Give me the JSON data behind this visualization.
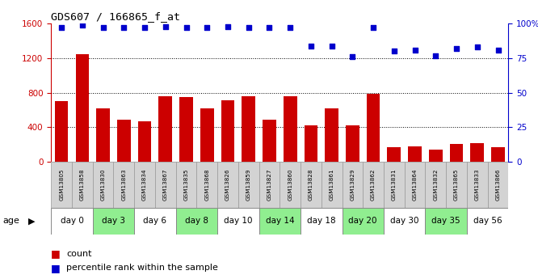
{
  "title": "GDS607 / 166865_f_at",
  "samples": [
    "GSM13805",
    "GSM13858",
    "GSM13830",
    "GSM13863",
    "GSM13834",
    "GSM13867",
    "GSM13835",
    "GSM13868",
    "GSM13826",
    "GSM13859",
    "GSM13827",
    "GSM13860",
    "GSM13828",
    "GSM13861",
    "GSM13829",
    "GSM13862",
    "GSM13831",
    "GSM13864",
    "GSM13832",
    "GSM13865",
    "GSM13833",
    "GSM13866"
  ],
  "counts": [
    700,
    1250,
    620,
    490,
    470,
    760,
    750,
    620,
    710,
    760,
    490,
    760,
    420,
    620,
    420,
    790,
    165,
    175,
    140,
    205,
    215,
    170
  ],
  "percentiles": [
    97,
    99,
    97,
    97,
    97,
    98,
    97,
    97,
    98,
    97,
    97,
    97,
    84,
    84,
    76,
    97,
    80,
    81,
    77,
    82,
    83,
    81
  ],
  "day_groups": [
    {
      "label": "day 0",
      "start": 0,
      "end": 1,
      "color": "#ffffff"
    },
    {
      "label": "day 3",
      "start": 2,
      "end": 3,
      "color": "#90ee90"
    },
    {
      "label": "day 6",
      "start": 4,
      "end": 5,
      "color": "#ffffff"
    },
    {
      "label": "day 8",
      "start": 6,
      "end": 7,
      "color": "#90ee90"
    },
    {
      "label": "day 10",
      "start": 8,
      "end": 9,
      "color": "#ffffff"
    },
    {
      "label": "day 14",
      "start": 10,
      "end": 11,
      "color": "#90ee90"
    },
    {
      "label": "day 18",
      "start": 12,
      "end": 13,
      "color": "#ffffff"
    },
    {
      "label": "day 20",
      "start": 14,
      "end": 15,
      "color": "#90ee90"
    },
    {
      "label": "day 30",
      "start": 16,
      "end": 17,
      "color": "#ffffff"
    },
    {
      "label": "day 35",
      "start": 18,
      "end": 19,
      "color": "#90ee90"
    },
    {
      "label": "day 56",
      "start": 20,
      "end": 21,
      "color": "#ffffff"
    }
  ],
  "bar_color": "#cc0000",
  "dot_color": "#0000cc",
  "left_ylim": [
    0,
    1600
  ],
  "right_ylim": [
    0,
    100
  ],
  "left_yticks": [
    0,
    400,
    800,
    1200,
    1600
  ],
  "right_yticks": [
    0,
    25,
    50,
    75,
    100
  ],
  "right_yticklabels": [
    "0",
    "25",
    "50",
    "75",
    "100%"
  ],
  "grid_values": [
    400,
    800,
    1200
  ],
  "background_color": "#ffffff",
  "sample_bg_color": "#d3d3d3",
  "day_group_border": "#888888",
  "age_label": "age",
  "legend_count_label": "count",
  "legend_pct_label": "percentile rank within the sample"
}
